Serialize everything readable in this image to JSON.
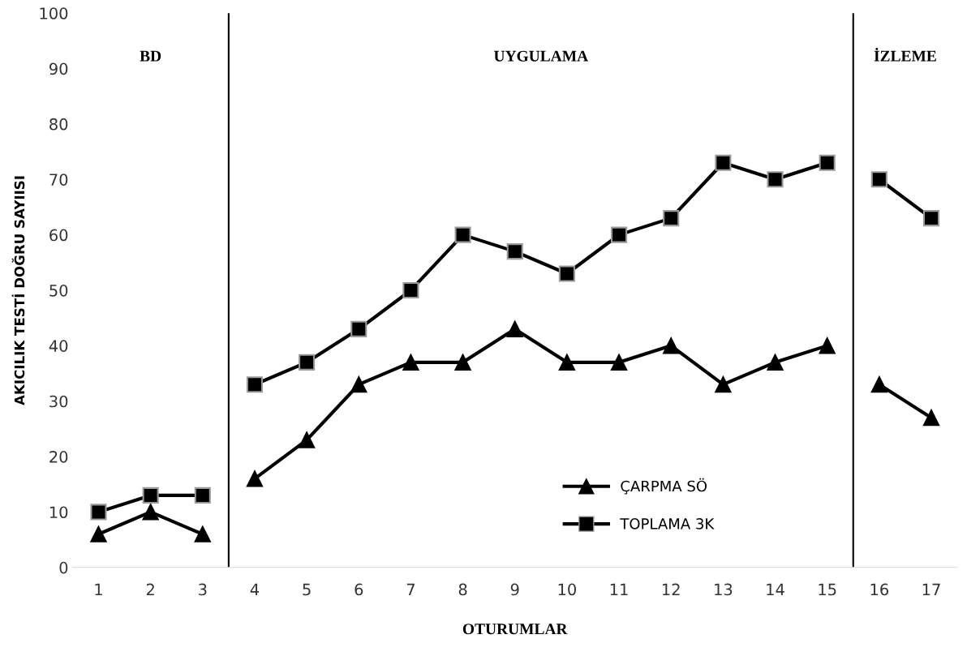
{
  "chart_data": {
    "type": "line",
    "xlabel": "OTURUMLAR",
    "ylabel": "AKICILIK TESTİ DOĞRU SAYIISI",
    "x": [
      1,
      2,
      3,
      4,
      5,
      6,
      7,
      8,
      9,
      10,
      11,
      12,
      13,
      14,
      15,
      16,
      17
    ],
    "xlim": [
      0.5,
      17.5
    ],
    "xticks": [
      1,
      2,
      3,
      4,
      5,
      6,
      7,
      8,
      9,
      10,
      11,
      12,
      13,
      14,
      15,
      16,
      17
    ],
    "ylim": [
      0,
      100
    ],
    "yticks": [
      0,
      10,
      20,
      30,
      40,
      50,
      60,
      70,
      80,
      90,
      100
    ],
    "series": [
      {
        "name": "ÇARPMA SÖ",
        "color": "#000000",
        "marker": "triangle",
        "values": [
          6,
          10,
          6,
          16,
          23,
          33,
          37,
          37,
          43,
          37,
          37,
          40,
          33,
          37,
          40,
          33,
          27
        ]
      },
      {
        "name": "TOPLAMA 3K",
        "color": "#000000",
        "marker": "square",
        "values": [
          10,
          13,
          13,
          33,
          37,
          43,
          50,
          60,
          57,
          53,
          60,
          63,
          73,
          70,
          73,
          70,
          63
        ]
      }
    ],
    "ref_lines": [
      {
        "axis": "x",
        "value": 3.5,
        "color": "#000000"
      },
      {
        "axis": "x",
        "value": 15.5,
        "color": "#000000"
      }
    ],
    "annotations": [
      "BD",
      "UYGULAMA",
      "İZLEME"
    ],
    "grid": false,
    "legend": "bottom right",
    "line_style": "solid"
  }
}
